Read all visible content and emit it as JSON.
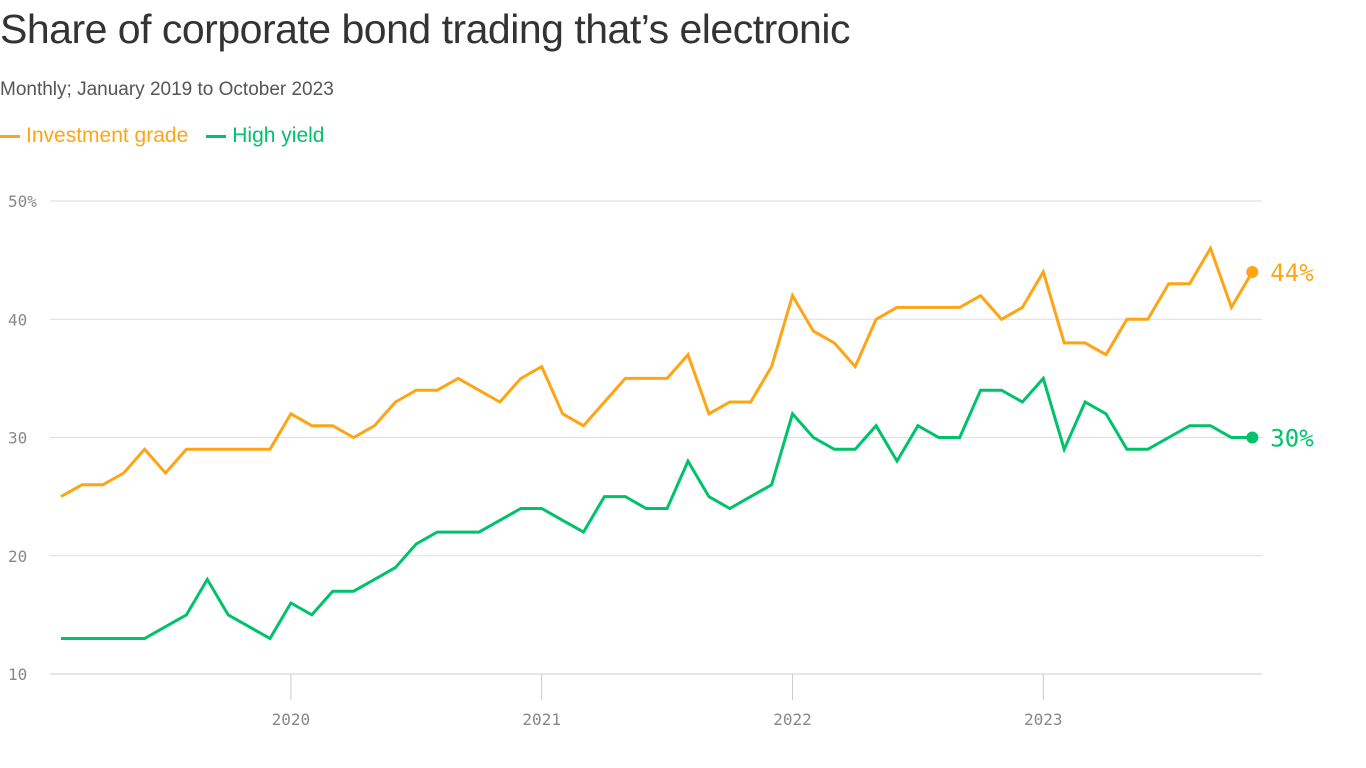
{
  "chart_data": {
    "type": "line",
    "title": "Share of corporate bond trading that’s electronic",
    "subtitle": "Monthly; January 2019 to October 2023",
    "x_start": "2019-01",
    "x_end": "2023-10",
    "x_ticks": [
      {
        "label": "2020",
        "month": "2019-12"
      },
      {
        "label": "2021",
        "month": "2020-12"
      },
      {
        "label": "2022",
        "month": "2021-12"
      },
      {
        "label": "2023",
        "month": "2022-12"
      }
    ],
    "y_ticks": [
      "10",
      "20",
      "30",
      "40",
      "50%"
    ],
    "y_tick_values": [
      10,
      20,
      30,
      40,
      50
    ],
    "ylim": [
      10,
      50
    ],
    "grid": true,
    "legend_placement": "top-left",
    "series": [
      {
        "name": "Investment grade",
        "color": "#FFA515",
        "end_label": "44%",
        "values": [
          25,
          26,
          26,
          27,
          29,
          27,
          29,
          29,
          29,
          29,
          29,
          32,
          31,
          31,
          30,
          31,
          33,
          34,
          34,
          35,
          34,
          33,
          35,
          36,
          32,
          31,
          33,
          35,
          35,
          35,
          37,
          32,
          33,
          33,
          36,
          42,
          39,
          38,
          36,
          40,
          41,
          41,
          41,
          41,
          42,
          40,
          41,
          44,
          38,
          38,
          37,
          40,
          40,
          43,
          43,
          46,
          41,
          44
        ]
      },
      {
        "name": "High yield",
        "color": "#00C26B",
        "end_label": "30%",
        "values": [
          13,
          13,
          13,
          13,
          13,
          14,
          15,
          18,
          15,
          14,
          13,
          16,
          15,
          17,
          17,
          18,
          19,
          21,
          22,
          22,
          22,
          23,
          24,
          24,
          23,
          22,
          25,
          25,
          24,
          24,
          28,
          25,
          24,
          25,
          26,
          32,
          30,
          29,
          29,
          31,
          28,
          31,
          30,
          30,
          34,
          34,
          33,
          35,
          29,
          33,
          32,
          29,
          29,
          30,
          31,
          31,
          30,
          30
        ]
      }
    ]
  }
}
